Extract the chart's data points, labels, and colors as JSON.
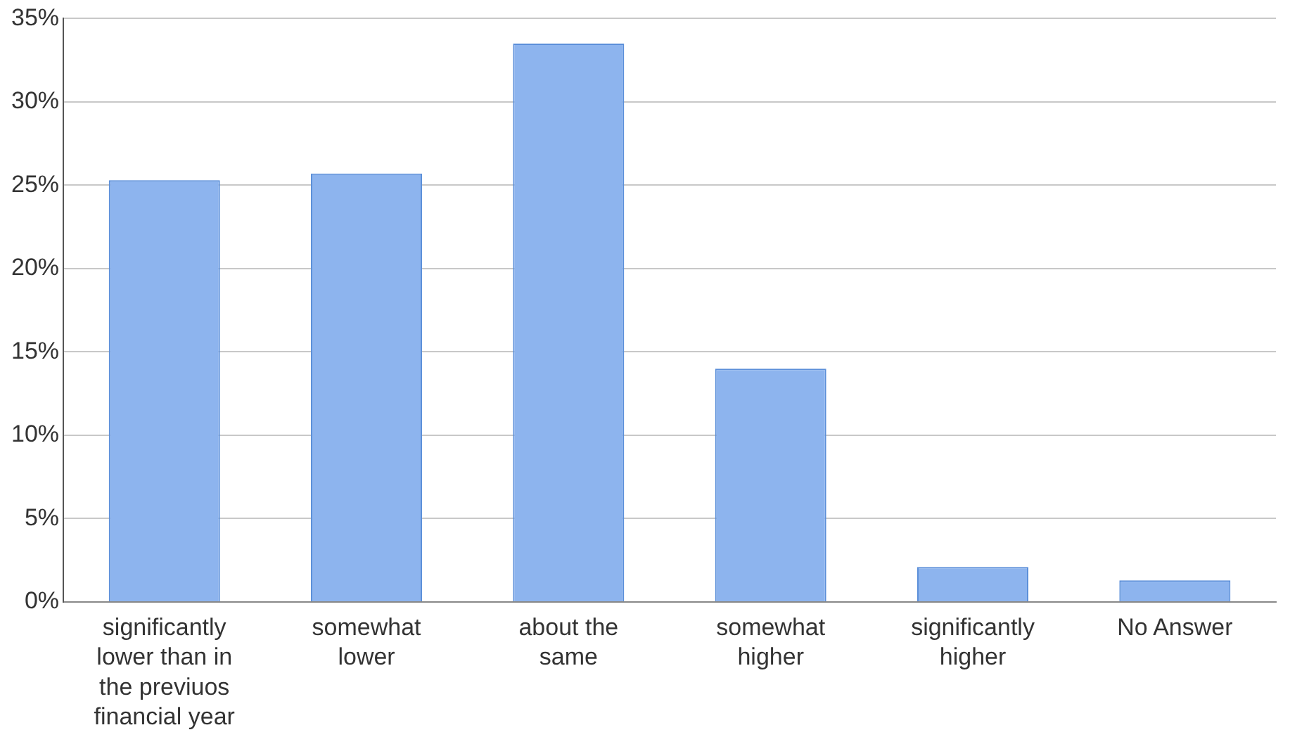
{
  "chart_data": {
    "type": "bar",
    "categories": [
      "significantly lower than in the previuos financial year",
      "somewhat lower",
      "about the same",
      "somewhat higher",
      "significantly higher",
      "No Answer"
    ],
    "values": [
      25.3,
      25.7,
      33.5,
      14.0,
      2.1,
      1.3
    ],
    "color": "#8db4ee",
    "ylim": [
      0,
      35
    ],
    "yticks": [
      {
        "value": 0,
        "label": "0%"
      },
      {
        "value": 5,
        "label": "5%"
      },
      {
        "value": 10,
        "label": "10%"
      },
      {
        "value": 15,
        "label": "15%"
      },
      {
        "value": 20,
        "label": "20%"
      },
      {
        "value": 25,
        "label": "25%"
      },
      {
        "value": 30,
        "label": "30%"
      },
      {
        "value": 35,
        "label": "35%"
      }
    ],
    "grid": "y",
    "legend": false
  }
}
